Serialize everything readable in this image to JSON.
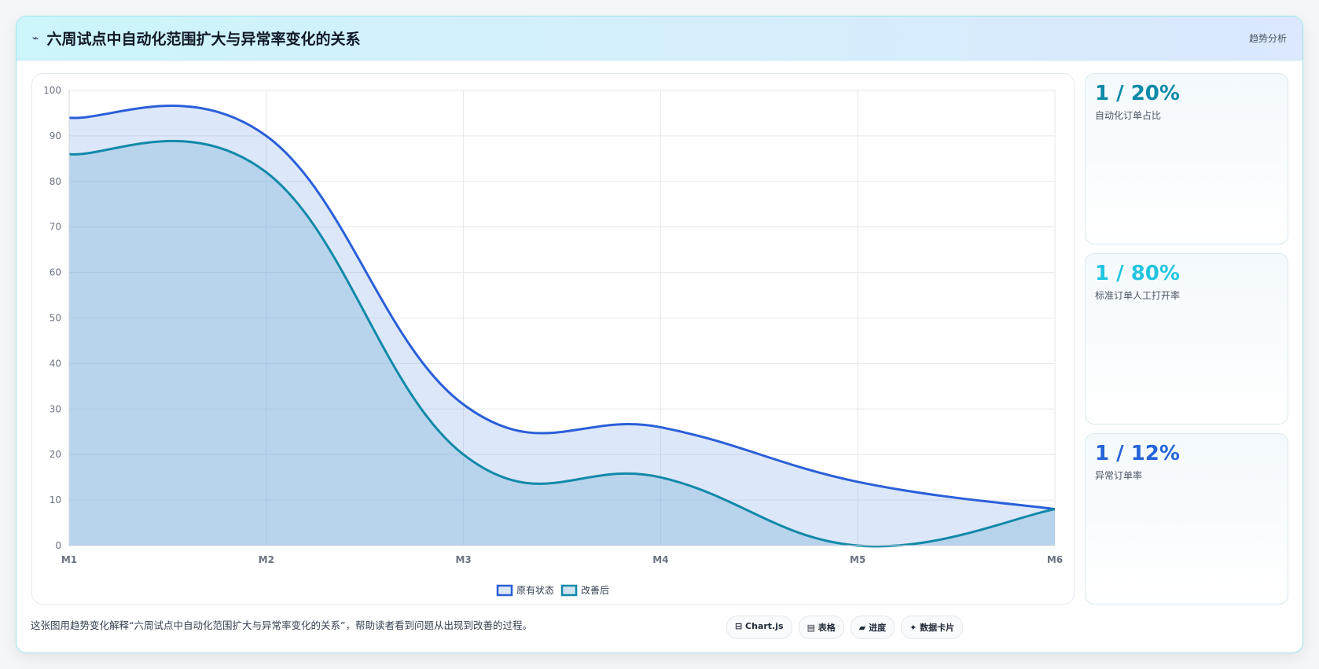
{
  "header": {
    "icon": "⌁",
    "title": "六周试点中自动化范围扩大与异常率变化的关系",
    "tag": "趋势分析"
  },
  "chart_data": {
    "type": "line",
    "area": true,
    "categories": [
      "M1",
      "M2",
      "M3",
      "M4",
      "M5",
      "M6"
    ],
    "series": [
      {
        "name": "原有状态",
        "color": "#2a5fd8",
        "fill": "rgba(120,160,235,0.25)",
        "values": [
          94,
          90,
          31,
          26,
          14,
          8
        ]
      },
      {
        "name": "改善后",
        "color": "#1189a8",
        "fill": "rgba(100,170,210,0.3)",
        "values": [
          86,
          82,
          20,
          15,
          0,
          8
        ]
      }
    ],
    "ylim": [
      0,
      100
    ],
    "yticks": [
      0,
      10,
      20,
      30,
      40,
      50,
      60,
      70,
      80,
      90,
      100
    ],
    "grid": true
  },
  "kpis": [
    {
      "value": "1 / 20%",
      "label": "自动化订单占比",
      "color": "#0e8aa8"
    },
    {
      "value": "1 / 80%",
      "label": "标准订单人工打开率",
      "color": "#22c5e0"
    },
    {
      "value": "1 / 12%",
      "label": "异常订单率",
      "color": "#2563d9"
    }
  ],
  "footer": {
    "text": "这张图用趋势变化解释“六周试点中自动化范围扩大与异常率变化的关系”，帮助读者看到问题从出现到改善的过程。",
    "buttons": [
      "⊟ Chart.js",
      "▤ 表格",
      "▰ 进度",
      "✦ 数据卡片"
    ]
  }
}
